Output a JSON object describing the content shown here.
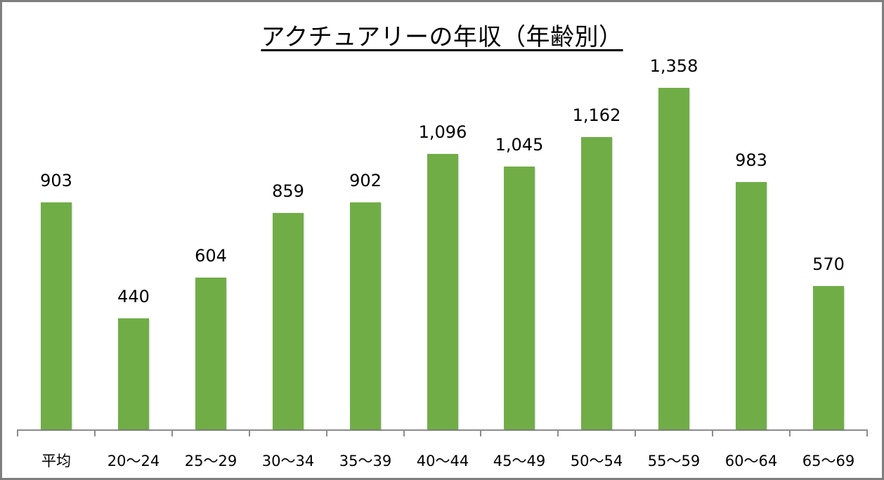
{
  "chart_data": {
    "type": "bar",
    "title": "アクチュアリーの年収（年齢別）",
    "xlabel": "",
    "ylabel": "",
    "categories": [
      "平均",
      "20〜24",
      "25〜29",
      "30〜34",
      "35〜39",
      "40〜44",
      "45〜49",
      "50〜54",
      "55〜59",
      "60〜64",
      "65〜69"
    ],
    "values": [
      903,
      440,
      604,
      859,
      902,
      1096,
      1045,
      1162,
      1358,
      983,
      570
    ],
    "value_labels": [
      "903",
      "440",
      "604",
      "859",
      "902",
      "1,096",
      "1,045",
      "1,162",
      "1,358",
      "983",
      "570"
    ],
    "ylim": [
      0,
      1500
    ],
    "grid": false,
    "legend": null,
    "bar_color": "#70ad47",
    "axis_color": "#8c8c8c",
    "frame_color": "#7f7f7f"
  }
}
